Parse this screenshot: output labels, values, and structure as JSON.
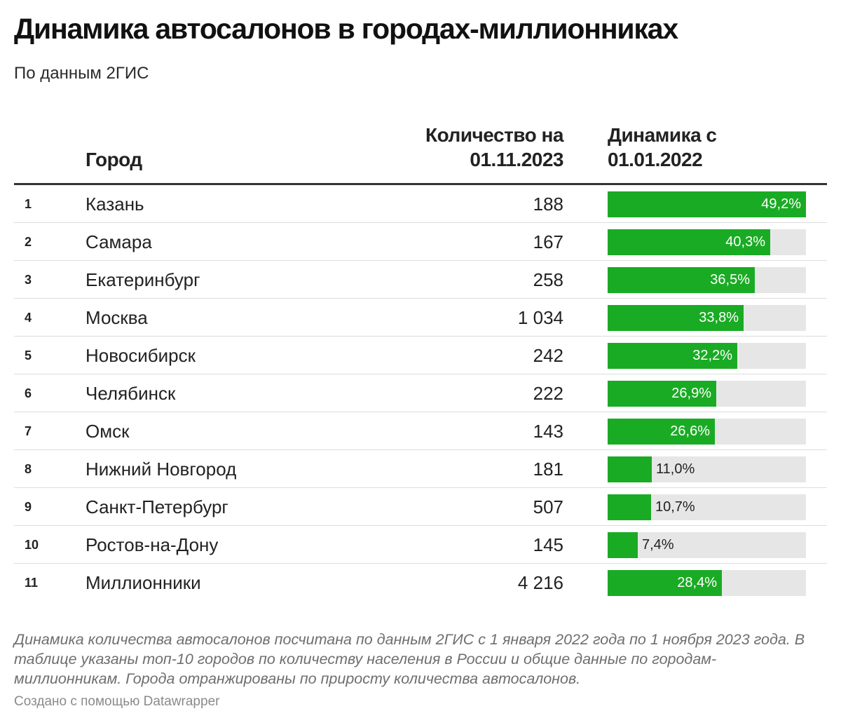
{
  "title": "Динамика автосалонов в городах-миллионниках",
  "subtitle": "По данным 2ГИС",
  "columns": {
    "city": "Город",
    "count": "Количество на 01.11.2023",
    "dynamics": "Динамика с 01.01.2022"
  },
  "colors": {
    "bar": "#1aab24",
    "track": "#e6e6e6"
  },
  "chart_data": {
    "type": "table",
    "title": "Динамика автосалонов в городах-миллионниках",
    "max_value": 49.2,
    "rows": [
      {
        "rank": "1",
        "city": "Казань",
        "count": "188",
        "value": 49.2,
        "label": "49,2%"
      },
      {
        "rank": "2",
        "city": "Самара",
        "count": "167",
        "value": 40.3,
        "label": "40,3%"
      },
      {
        "rank": "3",
        "city": "Екатеринбург",
        "count": "258",
        "value": 36.5,
        "label": "36,5%"
      },
      {
        "rank": "4",
        "city": "Москва",
        "count": "1 034",
        "value": 33.8,
        "label": "33,8%"
      },
      {
        "rank": "5",
        "city": "Новосибирск",
        "count": "242",
        "value": 32.2,
        "label": "32,2%"
      },
      {
        "rank": "6",
        "city": "Челябинск",
        "count": "222",
        "value": 26.9,
        "label": "26,9%"
      },
      {
        "rank": "7",
        "city": "Омск",
        "count": "143",
        "value": 26.6,
        "label": "26,6%"
      },
      {
        "rank": "8",
        "city": "Нижний Новгород",
        "count": "181",
        "value": 11.0,
        "label": "11,0%"
      },
      {
        "rank": "9",
        "city": "Санкт-Петербург",
        "count": "507",
        "value": 10.7,
        "label": "10,7%"
      },
      {
        "rank": "10",
        "city": "Ростов-на-Дону",
        "count": "145",
        "value": 7.4,
        "label": "7,4%"
      },
      {
        "rank": "11",
        "city": "Миллионники",
        "count": "4 216",
        "value": 28.4,
        "label": "28,4%"
      }
    ]
  },
  "notes": "Динамика количества автосалонов посчитана по данным 2ГИС с 1 января 2022 года по 1 ноября 2023 года. В таблице указаны топ-10 городов по количеству населения в России и общие данные по городам-миллионникам. Города отранжированы по приросту количества автосалонов.",
  "credit": "Создано с помощью Datawrapper"
}
